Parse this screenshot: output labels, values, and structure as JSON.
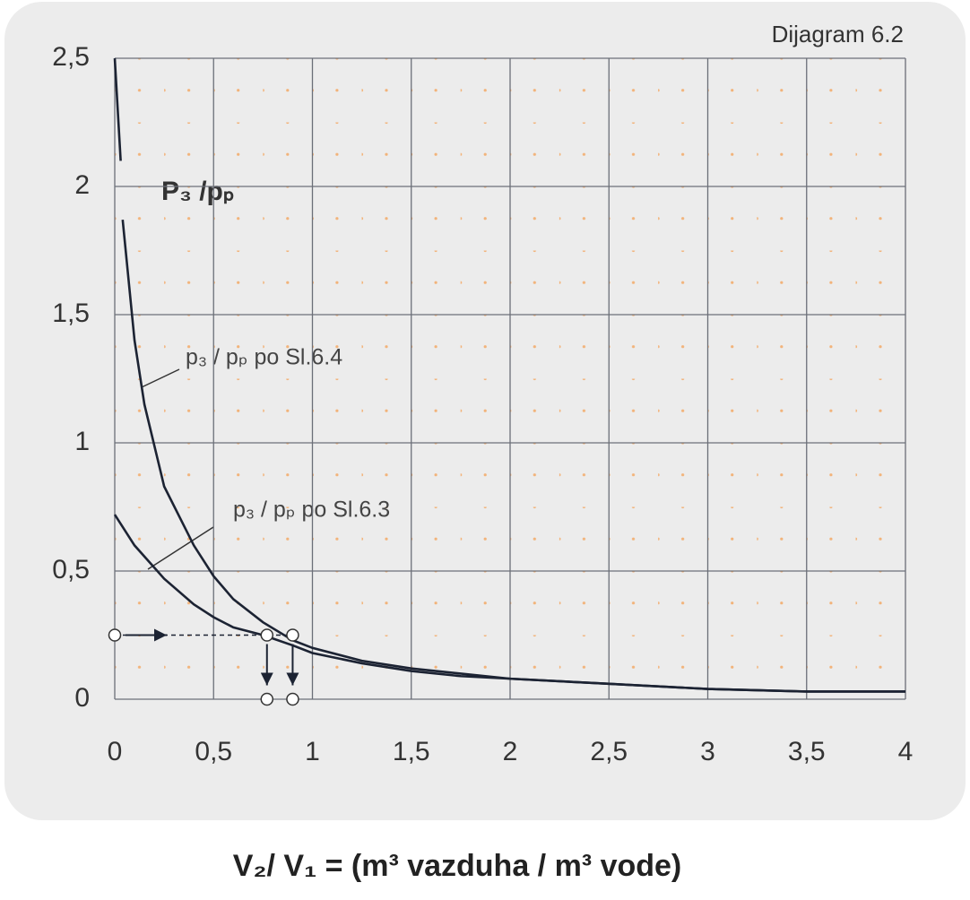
{
  "chart_data": {
    "type": "line",
    "title": "P₃ /pₚ",
    "subtitle": "Dijagram 6.2",
    "x_label": "V₂/ V₁ =  (m³ vazduha / m³ vode)",
    "series": [
      {
        "name": "p₃ / pₚ  po Sl.6.4",
        "color": "#1c2333",
        "x": [
          0,
          0.03,
          0.035,
          0.04,
          0.1,
          0.15,
          0.25,
          0.4,
          0.5,
          0.6,
          0.75,
          0.9,
          1,
          1.25,
          1.5,
          1.75,
          2,
          2.5,
          3,
          3.5,
          4
        ],
        "values": [
          2.5,
          2.1,
          null,
          1.87,
          1.4,
          1.15,
          0.83,
          0.6,
          0.48,
          0.39,
          0.3,
          0.23,
          0.2,
          0.15,
          0.12,
          0.1,
          0.08,
          0.06,
          0.04,
          0.03,
          0.03
        ]
      },
      {
        "name": "p₃ / pₚ  po Sl.6.3",
        "color": "#1c2333",
        "x": [
          0,
          0.1,
          0.25,
          0.4,
          0.5,
          0.6,
          0.75,
          0.9,
          1,
          1.25,
          1.5,
          1.75,
          2,
          2.5,
          3,
          3.5,
          4
        ],
        "values": [
          0.72,
          0.6,
          0.47,
          0.37,
          0.32,
          0.28,
          0.25,
          0.21,
          0.18,
          0.14,
          0.11,
          0.09,
          0.08,
          0.06,
          0.04,
          0.03,
          0.03
        ]
      }
    ],
    "markers": {
      "y": 0.25,
      "x": [
        0,
        0.77,
        0.9
      ]
    },
    "xlim": [
      0,
      4
    ],
    "xticks": [
      0,
      {
        "value": 0.5,
        "label": "0,5"
      },
      1,
      {
        "value": 1.5,
        "label": "1,5"
      },
      2,
      {
        "value": 2.5,
        "label": "2,5"
      },
      3,
      {
        "value": 3.5,
        "label": "3,5"
      },
      4
    ],
    "ylim": [
      0,
      2.5
    ],
    "yticks": [
      0,
      {
        "value": 0.5,
        "label": "0,5"
      },
      1,
      {
        "value": 1.5,
        "label": "1,5"
      },
      2,
      {
        "value": 2.5,
        "label": "2,5"
      }
    ],
    "grid": true
  }
}
